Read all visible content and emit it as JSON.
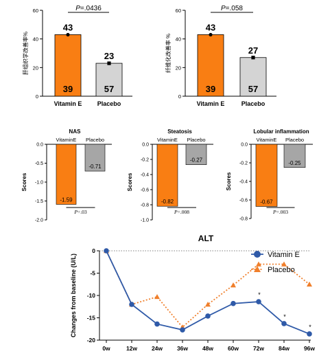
{
  "colors": {
    "vitamin_e": "#f97e13",
    "placebo": "#d4d4d4",
    "placebo_dark": "#a6a6a6",
    "line_vitamin_e": "#2f5aa8",
    "line_placebo": "#f07f2b"
  },
  "chart_data": [
    {
      "type": "bar",
      "ylabel": "肝组织学改善率%",
      "ylim": [
        0,
        60
      ],
      "yticks": [
        "0",
        "20",
        "40",
        "60"
      ],
      "categories": [
        "Vitamin E",
        "Placebo"
      ],
      "values": [
        43,
        23
      ],
      "value_labels": [
        "43",
        "23"
      ],
      "count_labels": [
        "39",
        "57"
      ],
      "pvalue": "P=.0436"
    },
    {
      "type": "bar",
      "ylabel": "纤维化改善率 %",
      "ylim": [
        0,
        60
      ],
      "yticks": [
        "0",
        "20",
        "40",
        "60"
      ],
      "categories": [
        "Vitamin E",
        "Placebo"
      ],
      "values": [
        43,
        27
      ],
      "value_labels": [
        "43",
        "27"
      ],
      "count_labels": [
        "39",
        "57"
      ],
      "pvalue": "P=.058"
    },
    {
      "type": "bar",
      "title": "NAS",
      "ylabel": "Scores",
      "ylim": [
        -2.0,
        0.0
      ],
      "yticks": [
        "0.0",
        "-0.5",
        "-1.0",
        "-1.5",
        "-2.0"
      ],
      "categories": [
        "VitaminE",
        "Placebo"
      ],
      "values": [
        -1.59,
        -0.71
      ],
      "value_labels": [
        "-1.59",
        "-0.71"
      ],
      "pvalue": "P=.03"
    },
    {
      "type": "bar",
      "title": "Steatosis",
      "ylabel": "Scores",
      "ylim": [
        -1.0,
        0.0
      ],
      "yticks": [
        "0.0",
        "-0.2",
        "-0.4",
        "-0.6",
        "-0.8",
        "-1.0"
      ],
      "categories": [
        "VitaminE",
        "Placebo"
      ],
      "values": [
        -0.82,
        -0.27
      ],
      "value_labels": [
        "-0.82",
        "-0.27"
      ],
      "pvalue": "P=.008"
    },
    {
      "type": "bar",
      "title": "Lobular inflammation",
      "ylabel": "Scores",
      "ylim": [
        -0.8,
        0.0
      ],
      "yticks": [
        "0.0",
        "-0.2",
        "-0.4",
        "-0.6",
        "-0.8"
      ],
      "categories": [
        "VitaminE",
        "Placebo"
      ],
      "values": [
        -0.67,
        -0.25
      ],
      "value_labels": [
        "-0.67",
        "-0.25"
      ],
      "pvalue": "P=.003"
    },
    {
      "type": "line",
      "title": "ALT",
      "ylabel": "Changes from baseline (U/L)",
      "ylim": [
        -20,
        0
      ],
      "yticks": [
        "0",
        "-5",
        "-10",
        "-15",
        "-20"
      ],
      "x": [
        "0w",
        "12w",
        "24w",
        "36w",
        "48w",
        "60w",
        "72w",
        "84w",
        "96w"
      ],
      "series": [
        {
          "name": "Vitamin E",
          "values": [
            0,
            -12,
            -16.4,
            -17.7,
            -14.6,
            -11.8,
            -11.4,
            -16.3,
            -18.6
          ]
        },
        {
          "name": "Placebo",
          "values": [
            0,
            -12,
            -10.3,
            -17.1,
            -12,
            -7.7,
            -3,
            -3,
            -7.5
          ]
        }
      ],
      "significance_marks": [
        "*",
        "*",
        "*"
      ]
    }
  ]
}
